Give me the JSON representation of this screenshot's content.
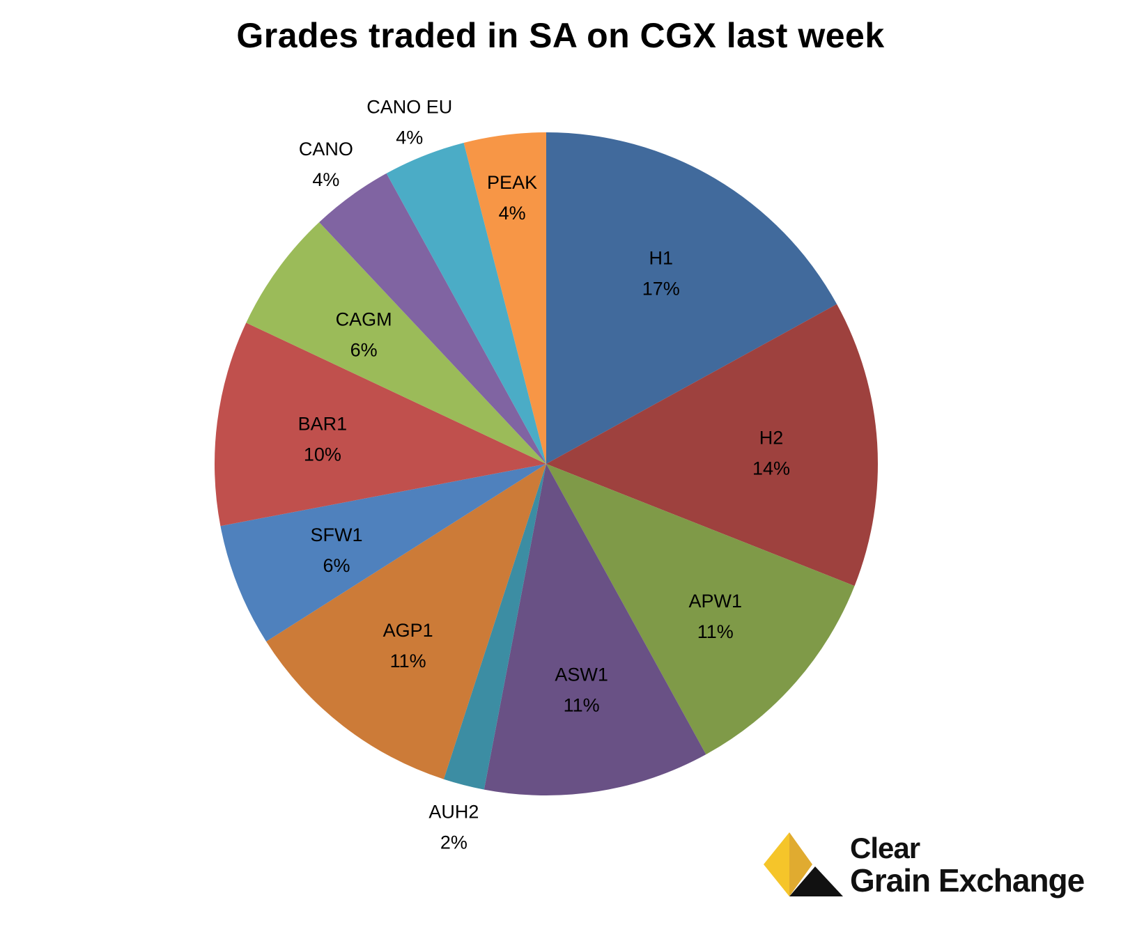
{
  "chart_data": {
    "type": "pie",
    "title": "Grades traded in SA on CGX last week",
    "start_angle_deg": 0,
    "direction": "clockwise",
    "slices": [
      {
        "name": "H1",
        "value": 17,
        "label": "17%",
        "color": "#416A9C"
      },
      {
        "name": "H2",
        "value": 14,
        "label": "14%",
        "color": "#9E413E"
      },
      {
        "name": "APW1",
        "value": 11,
        "label": "11%",
        "color": "#7F9A48"
      },
      {
        "name": "ASW1",
        "value": 11,
        "label": "11%",
        "color": "#695185"
      },
      {
        "name": "AUH2",
        "value": 2,
        "label": "2%",
        "color": "#3C8DA3"
      },
      {
        "name": "AGP1",
        "value": 11,
        "label": "11%",
        "color": "#CC7B38"
      },
      {
        "name": "SFW1",
        "value": 6,
        "label": "6%",
        "color": "#4F81BD"
      },
      {
        "name": "BAR1",
        "value": 10,
        "label": "10%",
        "color": "#C0504D"
      },
      {
        "name": "CAGM",
        "value": 6,
        "label": "6%",
        "color": "#9BBB59"
      },
      {
        "name": "CANO",
        "value": 4,
        "label": "4%",
        "color": "#8064A2"
      },
      {
        "name": "CANO EU",
        "value": 4,
        "label": "4%",
        "color": "#4BACC6"
      },
      {
        "name": "PEAK",
        "value": 4,
        "label": "4%",
        "color": "#F79646"
      }
    ]
  },
  "logo": {
    "line1": "Clear",
    "line2": "Grain Exchange",
    "colors": {
      "yellow_light": "#F5C52A",
      "yellow_dark": "#E0AB30",
      "black": "#111111"
    }
  }
}
